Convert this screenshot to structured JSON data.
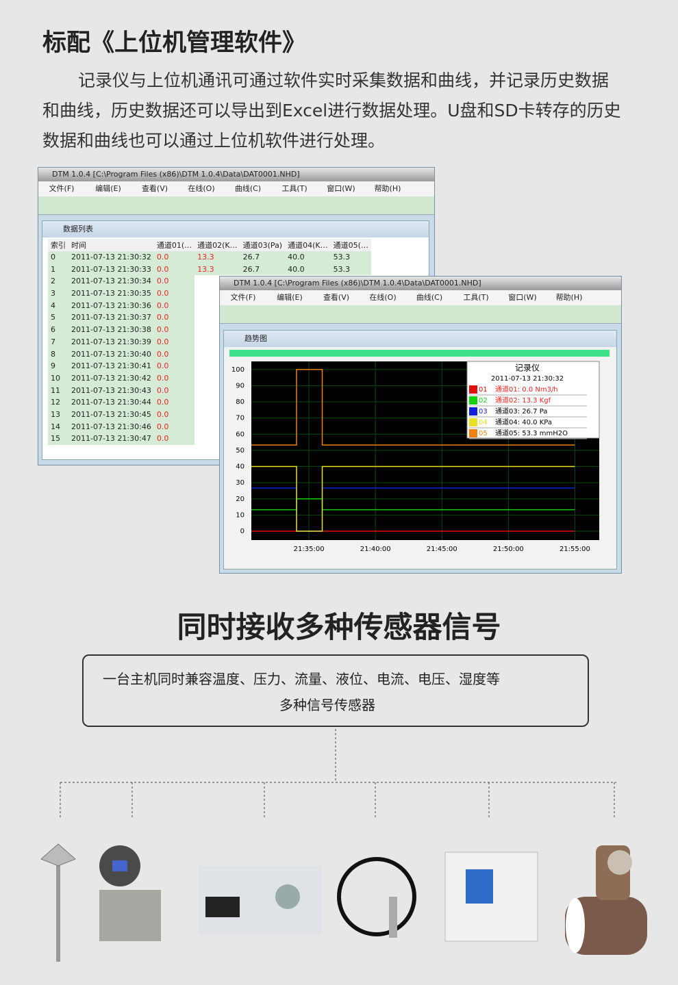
{
  "header": {
    "title": "标配《上位机管理软件》",
    "intro": "记录仪与上位机通讯可通过软件实时采集数据和曲线，并记录历史数据和曲线，历史数据还可以导出到Excel进行数据处理。U盘和SD卡转存的历史数据和曲线也可以通过上位机软件进行处理。"
  },
  "window1": {
    "title": "DTM 1.0.4 [C:\\Program Files (x86)\\DTM 1.0.4\\Data\\DAT0001.NHD]",
    "menu": [
      "文件(F)",
      "编辑(E)",
      "查看(V)",
      "在线(O)",
      "曲线(C)",
      "工具(T)",
      "窗口(W)",
      "帮助(H)"
    ],
    "subtitle": "数据列表",
    "table": {
      "headers": [
        "索引",
        "时间",
        "通道01(…",
        "通道02(K…",
        "通道03(Pa)",
        "通道04(K…",
        "通道05(…"
      ],
      "rows": [
        [
          "0",
          "2011-07-13 21:30:32",
          "0.0",
          "13.3",
          "26.7",
          "40.0",
          "53.3"
        ],
        [
          "1",
          "2011-07-13 21:30:33",
          "0.0",
          "13.3",
          "26.7",
          "40.0",
          "53.3"
        ],
        [
          "2",
          "2011-07-13 21:30:34",
          "0.0"
        ],
        [
          "3",
          "2011-07-13 21:30:35",
          "0.0"
        ],
        [
          "4",
          "2011-07-13 21:30:36",
          "0.0"
        ],
        [
          "5",
          "2011-07-13 21:30:37",
          "0.0"
        ],
        [
          "6",
          "2011-07-13 21:30:38",
          "0.0"
        ],
        [
          "7",
          "2011-07-13 21:30:39",
          "0.0"
        ],
        [
          "8",
          "2011-07-13 21:30:40",
          "0.0"
        ],
        [
          "9",
          "2011-07-13 21:30:41",
          "0.0"
        ],
        [
          "10",
          "2011-07-13 21:30:42",
          "0.0"
        ],
        [
          "11",
          "2011-07-13 21:30:43",
          "0.0"
        ],
        [
          "12",
          "2011-07-13 21:30:44",
          "0.0"
        ],
        [
          "13",
          "2011-07-13 21:30:45",
          "0.0"
        ],
        [
          "14",
          "2011-07-13 21:30:46",
          "0.0"
        ],
        [
          "15",
          "2011-07-13 21:30:47",
          "0.0"
        ]
      ]
    }
  },
  "window2": {
    "title": "DTM 1.0.4 [C:\\Program Files (x86)\\DTM 1.0.4\\Data\\DAT0001.NHD]",
    "menu": [
      "文件(F)",
      "编辑(E)",
      "查看(V)",
      "在线(O)",
      "曲线(C)",
      "工具(T)",
      "窗口(W)",
      "帮助(H)"
    ],
    "subtitle": "趋势图",
    "chart_data": {
      "type": "line",
      "legend_title": "记录仪",
      "legend_time": "2011-07-13 21:30:32",
      "x": [
        "21:30:40",
        "21:34:04",
        "21:34:04",
        "21:36:00",
        "21:36:00",
        "21:55:00"
      ],
      "xlim": [
        "21:30:40",
        "21:56:50"
      ],
      "xticks": [
        "21:35:00",
        "21:40:00",
        "21:45:00",
        "21:50:00",
        "21:55:00"
      ],
      "ylim": [
        -5.5,
        105
      ],
      "yticks": [
        0,
        10,
        20,
        30,
        40,
        50,
        60,
        70,
        80,
        90,
        100
      ],
      "grid": true,
      "series": [
        {
          "code": "01",
          "name": "通道01: 0.0 Nm3/h",
          "color": "#e01010",
          "values": [
            0,
            0,
            0,
            0,
            0,
            0
          ]
        },
        {
          "code": "02",
          "name": "通道02: 13.3 Kgf",
          "color": "#10d010",
          "values": [
            13.3,
            13.3,
            20,
            20,
            13.3,
            13.3
          ]
        },
        {
          "code": "03",
          "name": "通道03: 26.7 Pa",
          "color": "#1020e0",
          "values": [
            26.7,
            26.7,
            0,
            0,
            26.7,
            26.7
          ]
        },
        {
          "code": "04",
          "name": "通道04: 40.0 KPa",
          "color": "#e8e020",
          "values": [
            40,
            40,
            0,
            0,
            40,
            40
          ]
        },
        {
          "code": "05",
          "name": "通道05: 53.3 mmH2O",
          "color": "#f08010",
          "values": [
            53.3,
            53.3,
            100,
            100,
            53.3,
            53.3
          ]
        }
      ]
    }
  },
  "section2": {
    "title": "同时接收多种传感器信号",
    "lines": [
      "一台主机同时兼容温度、压力、流量、液位、电流、电压、湿度等",
      "多种信号传感器"
    ]
  }
}
